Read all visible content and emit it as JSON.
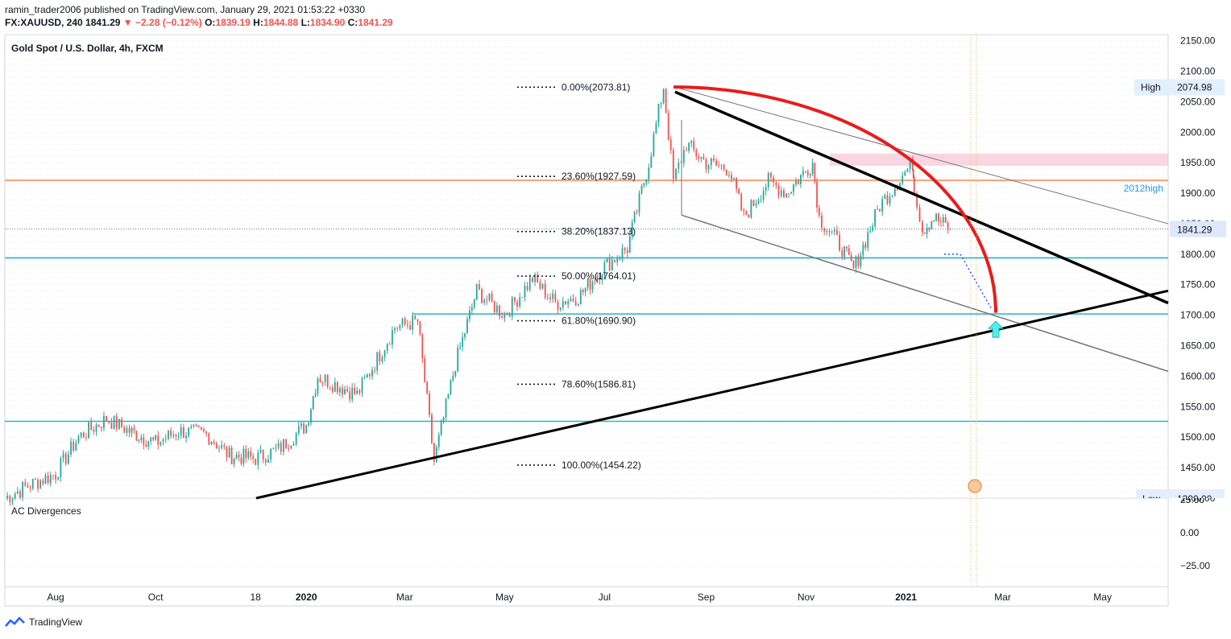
{
  "header": {
    "publisher": "ramin_trader2006 published on TradingView.com, January 29, 2021 01:53:22 +0330",
    "symbol": "FX:XAUUSD, 240",
    "last": "1841.29",
    "change_arrow": "▼",
    "change": "−2.28 (−0.12%)",
    "o_label": "O:",
    "o": "1839.19",
    "h_label": "H:",
    "h": "1844.88",
    "l_label": "L:",
    "l": "1834.90",
    "c_label": "C:",
    "c": "1841.29"
  },
  "footer": {
    "brand": "TradingView"
  },
  "chart_data": {
    "type": "line",
    "title": "Gold Spot / U.S. Dollar, 4h, FXCM",
    "x_labels": [
      "Aug",
      "Oct",
      "18",
      "2020",
      "Mar",
      "May",
      "Jul",
      "Sep",
      "Nov",
      "2021",
      "Mar",
      "May"
    ],
    "x_ticks": [
      "2019-08-01",
      "2019-10-01",
      "2019-12-01",
      "2020-01-01",
      "2020-03-01",
      "2020-05-01",
      "2020-07-01",
      "2020-09-01",
      "2020-11-01",
      "2021-01-01",
      "2021-03-01",
      "2021-05-01"
    ],
    "y_ticks": [
      2150,
      2100,
      2050,
      2000,
      1950,
      1900,
      1850,
      1800,
      1750,
      1700,
      1650,
      1600,
      1550,
      1500,
      1450,
      1400
    ],
    "y_tick_labels": [
      "2150.00",
      "2100.00",
      "2050.00",
      "2000.00",
      "1950.00",
      "1900.00",
      "1850.00",
      "1800.00",
      "1750.00",
      "1700.00",
      "1650.00",
      "1600.00",
      "1550.00",
      "1500.00",
      "1450.00",
      "1400.00"
    ],
    "ylim": [
      1400,
      2160
    ],
    "x": [
      "2019-07-01",
      "2019-07-15",
      "2019-08-01",
      "2019-08-15",
      "2019-09-01",
      "2019-09-15",
      "2019-10-01",
      "2019-10-15",
      "2019-11-01",
      "2019-11-15",
      "2019-12-01",
      "2019-12-15",
      "2020-01-01",
      "2020-01-08",
      "2020-02-01",
      "2020-02-24",
      "2020-03-09",
      "2020-03-19",
      "2020-04-01",
      "2020-04-14",
      "2020-05-01",
      "2020-05-18",
      "2020-06-01",
      "2020-06-15",
      "2020-07-01",
      "2020-07-15",
      "2020-07-28",
      "2020-08-06",
      "2020-08-12",
      "2020-08-20",
      "2020-09-01",
      "2020-09-15",
      "2020-09-24",
      "2020-10-09",
      "2020-10-20",
      "2020-11-05",
      "2020-11-09",
      "2020-11-23",
      "2020-11-30",
      "2020-12-16",
      "2021-01-05",
      "2021-01-06",
      "2021-01-11",
      "2021-01-18",
      "2021-01-28"
    ],
    "values": [
      1400,
      1420,
      1440,
      1500,
      1530,
      1510,
      1490,
      1510,
      1505,
      1470,
      1465,
      1480,
      1520,
      1600,
      1570,
      1680,
      1690,
      1460,
      1620,
      1740,
      1700,
      1760,
      1720,
      1730,
      1780,
      1810,
      1950,
      2074.98,
      1920,
      1980,
      1950,
      1940,
      1860,
      1920,
      1900,
      1950,
      1860,
      1810,
      1775,
      1880,
      1950,
      1910,
      1840,
      1860,
      1841.29
    ],
    "series": [
      {
        "name": "XAUUSD 4h"
      }
    ],
    "last_price_label": "1841.29",
    "high_label": "High",
    "high_value": "2074.98",
    "low_label": "Low",
    "low_value": "1390.00",
    "fib_levels": [
      {
        "label": "0.00%(2073.81)",
        "value": 2073.81
      },
      {
        "label": "23.60%(1927.59)",
        "value": 1927.59
      },
      {
        "label": "38.20%(1837.13)",
        "value": 1837.13
      },
      {
        "label": "50.00%(1764.01)",
        "value": 1764.01
      },
      {
        "label": "61.80%(1690.90)",
        "value": 1690.9
      },
      {
        "label": "78.60%(1586.81)",
        "value": 1586.81
      },
      {
        "label": "100.00%(1454.22)",
        "value": 1454.22
      }
    ],
    "annotations": {
      "resistance_label": "2012high",
      "orange_line": 1921,
      "cyan_lines": [
        1794,
        1702,
        1526
      ],
      "pink_zone": [
        1945,
        1965
      ]
    },
    "indicator": {
      "name": "AC Divergences",
      "y_tick_labels": [
        "25.00",
        "0.00",
        "−25.00"
      ],
      "y_ticks": [
        25,
        0,
        -25
      ]
    },
    "colors": {
      "up": "#26a69a",
      "down": "#ef5350",
      "fib": "#131722",
      "orange": "#f4a07a",
      "cyan": "#22b5cf",
      "arc": "#e81c1c",
      "pink": "#f8c5d3",
      "arrow": "#4df0ea",
      "dotted_arrow": "#2962ff",
      "trendline": "#000000",
      "channel": "#757575"
    }
  }
}
